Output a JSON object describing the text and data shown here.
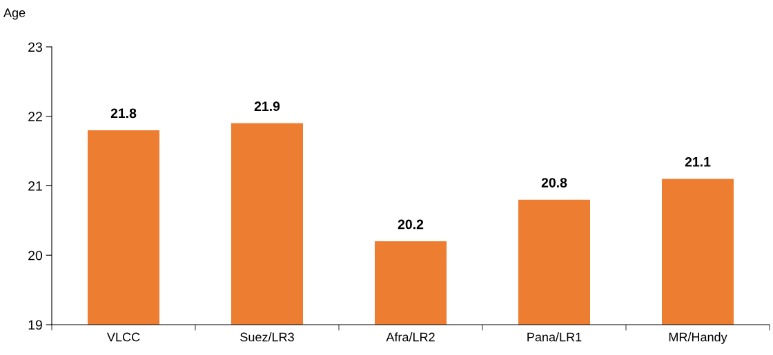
{
  "chart_data": {
    "type": "bar",
    "ylabel": "Age",
    "categories": [
      "VLCC",
      "Suez/LR3",
      "Afra/LR2",
      "Pana/LR1",
      "MR/Handy"
    ],
    "values": [
      21.8,
      21.9,
      20.2,
      20.8,
      21.1
    ],
    "color": "#ed7d31",
    "ylim": [
      19,
      23
    ],
    "yticks": [
      19,
      20,
      21,
      22,
      23
    ],
    "grid": false,
    "data_labels": true
  }
}
